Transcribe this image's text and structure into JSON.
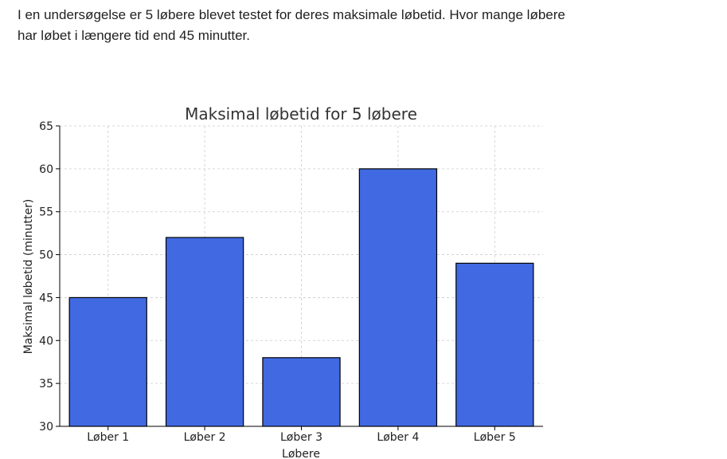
{
  "question": {
    "line1": "I en undersøgelse er 5 løbere blevet testet for deres maksimale løbetid. Hvor mange løbere",
    "line2": "har løbet i længere tid end 45 minutter."
  },
  "chart_data": {
    "type": "bar",
    "title": "Maksimal løbetid for 5 løbere",
    "xlabel": "Løbere",
    "ylabel": "Maksimal løbetid (minutter)",
    "categories": [
      "Løber 1",
      "Løber 2",
      "Løber 3",
      "Løber 4",
      "Løber 5"
    ],
    "values": [
      45,
      52,
      38,
      60,
      49
    ],
    "ylim": [
      30,
      65
    ],
    "yticks": [
      30,
      35,
      40,
      45,
      50,
      55,
      60,
      65
    ],
    "grid": true,
    "bar_color": "#4169e1",
    "bar_edge_color": "#000000",
    "grid_color": "#cccccc"
  }
}
